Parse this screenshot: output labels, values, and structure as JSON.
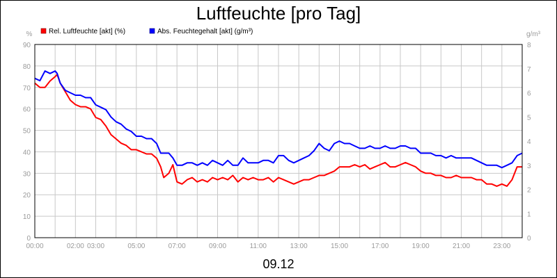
{
  "chart_data": {
    "type": "line",
    "title": "Luftfeuchte [pro Tag]",
    "date_label": "09.12",
    "y_left_unit": "%",
    "y_right_unit": "g/m³",
    "y_left_range": [
      0,
      90
    ],
    "y_left_ticks": [
      "0",
      "10",
      "20",
      "30",
      "40",
      "50",
      "60",
      "70",
      "80",
      "90"
    ],
    "y_right_range": [
      0,
      8
    ],
    "y_right_ticks": [
      "0",
      "1",
      "2",
      "3",
      "4",
      "5",
      "6",
      "7",
      "8"
    ],
    "x_range_hours": [
      0,
      24
    ],
    "x_tick_labels": [
      {
        "hour": 0,
        "label": "00:00"
      },
      {
        "hour": 2,
        "label": "02:00"
      },
      {
        "hour": 3,
        "label": "03:00"
      },
      {
        "hour": 5,
        "label": "05:00"
      },
      {
        "hour": 7,
        "label": "07:00"
      },
      {
        "hour": 9,
        "label": "09:00"
      },
      {
        "hour": 11,
        "label": "11:00"
      },
      {
        "hour": 13,
        "label": "13:00"
      },
      {
        "hour": 15,
        "label": "15:00"
      },
      {
        "hour": 17,
        "label": "17:00"
      },
      {
        "hour": 19,
        "label": "19:00"
      },
      {
        "hour": 21,
        "label": "21:00"
      },
      {
        "hour": 23,
        "label": "23:00"
      }
    ],
    "grid": true,
    "legend_position": "top-left",
    "series": [
      {
        "name": "Rel. Luftfeuchte [akt] (%)",
        "axis": "left",
        "color": "#ff0000",
        "x": [
          0,
          0.25,
          0.5,
          0.75,
          1.0,
          1.1,
          1.25,
          1.5,
          1.75,
          2.0,
          2.25,
          2.5,
          2.75,
          3.0,
          3.25,
          3.5,
          3.75,
          4.0,
          4.25,
          4.5,
          4.75,
          5.0,
          5.25,
          5.5,
          5.75,
          6.0,
          6.2,
          6.35,
          6.6,
          6.8,
          7.0,
          7.25,
          7.5,
          7.75,
          8.0,
          8.25,
          8.5,
          8.75,
          9.0,
          9.25,
          9.5,
          9.75,
          10.0,
          10.25,
          10.5,
          10.75,
          11.0,
          11.25,
          11.5,
          11.75,
          12.0,
          12.25,
          12.5,
          12.75,
          13.0,
          13.25,
          13.5,
          13.75,
          14.0,
          14.25,
          14.5,
          14.75,
          15.0,
          15.25,
          15.5,
          15.75,
          16.0,
          16.25,
          16.5,
          16.75,
          17.0,
          17.25,
          17.5,
          17.75,
          18.0,
          18.25,
          18.5,
          18.75,
          19.0,
          19.25,
          19.5,
          19.75,
          20.0,
          20.25,
          20.5,
          20.75,
          21.0,
          21.25,
          21.5,
          21.75,
          22.0,
          22.25,
          22.5,
          22.75,
          23.0,
          23.25,
          23.5,
          23.75,
          24.0
        ],
        "values": [
          72,
          70,
          70,
          73,
          75,
          76,
          72,
          68,
          64,
          62,
          61,
          61,
          60,
          56,
          55,
          52,
          48,
          46,
          44,
          43,
          41,
          41,
          40,
          39,
          39,
          37,
          33,
          28,
          30,
          34,
          26,
          25,
          27,
          28,
          26,
          27,
          26,
          28,
          27,
          28,
          27,
          29,
          26,
          28,
          27,
          28,
          27,
          27,
          28,
          26,
          28,
          27,
          26,
          25,
          26,
          27,
          27,
          28,
          29,
          29,
          30,
          31,
          33,
          33,
          33,
          34,
          33,
          34,
          32,
          33,
          34,
          35,
          33,
          33,
          34,
          35,
          34,
          33,
          31,
          30,
          30,
          29,
          29,
          28,
          28,
          29,
          28,
          28,
          28,
          27,
          27,
          25,
          25,
          24,
          25,
          24,
          27,
          33,
          33
        ]
      },
      {
        "name": "Abs. Feuchtegehalt [akt] (g/m³)",
        "axis": "right",
        "color": "#0000ff",
        "x": [
          0,
          0.25,
          0.5,
          0.75,
          1.0,
          1.1,
          1.25,
          1.5,
          1.75,
          2.0,
          2.25,
          2.5,
          2.75,
          3.0,
          3.25,
          3.5,
          3.75,
          4.0,
          4.25,
          4.5,
          4.75,
          5.0,
          5.25,
          5.5,
          5.75,
          6.0,
          6.2,
          6.35,
          6.6,
          6.8,
          7.0,
          7.25,
          7.5,
          7.75,
          8.0,
          8.25,
          8.5,
          8.75,
          9.0,
          9.25,
          9.5,
          9.75,
          10.0,
          10.25,
          10.5,
          10.75,
          11.0,
          11.25,
          11.5,
          11.75,
          12.0,
          12.25,
          12.5,
          12.75,
          13.0,
          13.25,
          13.5,
          13.75,
          14.0,
          14.25,
          14.5,
          14.75,
          15.0,
          15.25,
          15.5,
          15.75,
          16.0,
          16.25,
          16.5,
          16.75,
          17.0,
          17.25,
          17.5,
          17.75,
          18.0,
          18.25,
          18.5,
          18.75,
          19.0,
          19.25,
          19.5,
          19.75,
          20.0,
          20.25,
          20.5,
          20.75,
          21.0,
          21.25,
          21.5,
          21.75,
          22.0,
          22.25,
          22.5,
          22.75,
          23.0,
          23.25,
          23.5,
          23.75,
          24.0
        ],
        "values": [
          6.6,
          6.5,
          6.9,
          6.8,
          6.9,
          6.8,
          6.4,
          6.1,
          6.0,
          5.9,
          5.9,
          5.8,
          5.8,
          5.5,
          5.4,
          5.3,
          5.0,
          4.8,
          4.7,
          4.5,
          4.4,
          4.2,
          4.2,
          4.1,
          4.1,
          3.9,
          3.5,
          3.5,
          3.5,
          3.3,
          3.0,
          3.0,
          3.1,
          3.1,
          3.0,
          3.1,
          3.0,
          3.2,
          3.1,
          3.0,
          3.2,
          3.0,
          3.0,
          3.3,
          3.1,
          3.1,
          3.1,
          3.2,
          3.2,
          3.1,
          3.4,
          3.4,
          3.2,
          3.1,
          3.2,
          3.3,
          3.4,
          3.6,
          3.9,
          3.7,
          3.6,
          3.9,
          4.0,
          3.9,
          3.9,
          3.8,
          3.7,
          3.7,
          3.8,
          3.7,
          3.7,
          3.8,
          3.7,
          3.7,
          3.8,
          3.8,
          3.7,
          3.7,
          3.5,
          3.5,
          3.5,
          3.4,
          3.4,
          3.3,
          3.4,
          3.3,
          3.3,
          3.3,
          3.3,
          3.2,
          3.1,
          3.0,
          3.0,
          3.0,
          2.9,
          3.0,
          3.1,
          3.4,
          3.5
        ]
      }
    ]
  }
}
